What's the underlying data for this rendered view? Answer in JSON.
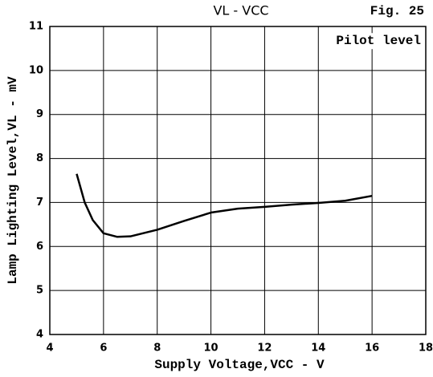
{
  "chart_data": {
    "type": "line",
    "title": "VL - VCC",
    "figure_label": "Fig. 25",
    "annotation": "Pilot level",
    "xlabel": "Supply Voltage,VCC - V",
    "ylabel": "Lamp Lighting Level,VL - mV",
    "x": [
      5,
      5.3,
      5.6,
      6,
      6.5,
      7,
      8,
      9,
      10,
      11,
      12,
      13,
      14,
      15,
      16
    ],
    "series": [
      {
        "name": "Pilot level",
        "color": "#000000",
        "values": [
          7.65,
          7.0,
          6.6,
          6.3,
          6.22,
          6.23,
          6.38,
          6.58,
          6.77,
          6.86,
          6.9,
          6.95,
          6.99,
          7.04,
          7.15
        ]
      }
    ],
    "xlim": [
      4,
      18
    ],
    "xticks": [
      4,
      6,
      8,
      10,
      12,
      14,
      16,
      18
    ],
    "ylim": [
      4,
      11
    ],
    "yticks": [
      4,
      5,
      6,
      7,
      8,
      9,
      10,
      11
    ],
    "grid": true
  }
}
